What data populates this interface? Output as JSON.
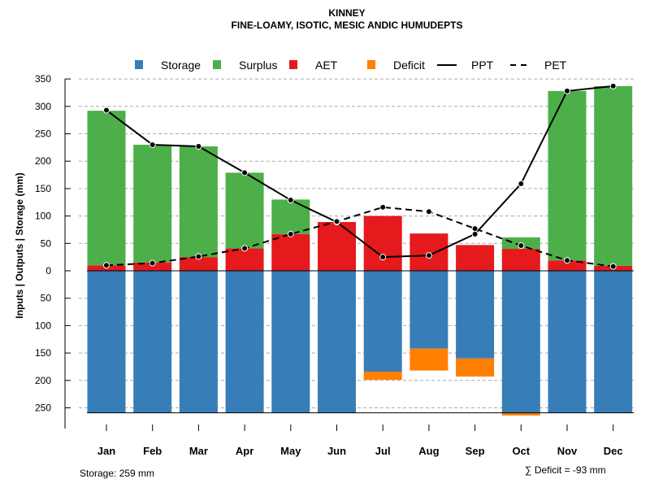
{
  "chart_data": {
    "type": "bar",
    "title": "KINNEY",
    "subtitle": "FINE-LOAMY, ISOTIC, MESIC ANDIC HUMUDEPTS",
    "ylabel": "Inputs | Outputs | Storage    (mm)",
    "ylim": [
      -259,
      350
    ],
    "yticks": [
      350,
      300,
      250,
      200,
      150,
      100,
      50,
      0,
      -50,
      -100,
      -150,
      -200,
      -250
    ],
    "categories": [
      "Jan",
      "Feb",
      "Mar",
      "Apr",
      "May",
      "Jun",
      "Jul",
      "Aug",
      "Sep",
      "Oct",
      "Nov",
      "Dec"
    ],
    "series": [
      {
        "name": "Storage",
        "type": "bar",
        "color": "#377EB8",
        "values": [
          259,
          259,
          259,
          259,
          259,
          259,
          184,
          142,
          160,
          259,
          259,
          259
        ]
      },
      {
        "name": "Surplus",
        "type": "bar",
        "color": "#4DAF4A",
        "values": [
          282,
          215,
          202,
          138,
          63,
          0,
          0,
          0,
          0,
          21,
          309,
          328
        ]
      },
      {
        "name": "AET",
        "type": "bar",
        "color": "#E41A1C",
        "values": [
          10,
          15,
          25,
          41,
          67,
          89,
          100,
          68,
          47,
          40,
          19,
          9
        ]
      },
      {
        "name": "Deficit",
        "type": "bar",
        "color": "#FF7F00",
        "values": [
          0,
          0,
          0,
          0,
          0,
          0,
          15,
          40,
          33,
          5,
          0,
          0
        ]
      },
      {
        "name": "PPT",
        "type": "line",
        "color": "#000000",
        "values": [
          293,
          230,
          227,
          179,
          129,
          89,
          25,
          28,
          67,
          159,
          328,
          337
        ]
      },
      {
        "name": "PET",
        "type": "line-dashed",
        "color": "#000000",
        "values": [
          10,
          14,
          26,
          41,
          67,
          90,
          116,
          108,
          77,
          46,
          19,
          8
        ]
      }
    ],
    "legend_position": "top",
    "annotations": {
      "storage": "Storage: 259 mm",
      "deficit": "∑ Deficit = -93 mm"
    }
  }
}
